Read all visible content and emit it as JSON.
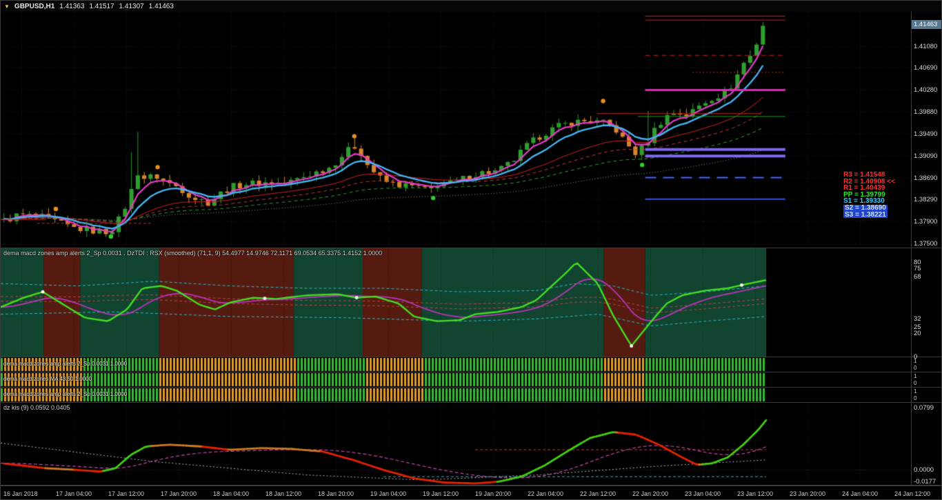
{
  "colors": {
    "bg": "#000000",
    "grid": "#1f1f1f",
    "bull": "#2f9e2f",
    "bear": "#d4862c",
    "zone_green": "#124530",
    "zone_red": "#551b10",
    "rsx_green": "#44dd22",
    "rsx_magenta": "#bb33bb",
    "band_cyan": "#2ab8c8",
    "band_red": "#b84444",
    "strip_green": "#33bb33",
    "strip_orange": "#e09a28",
    "kis_green": "#44cc11",
    "kis_red": "#e02200",
    "kis_orange": "#cc7a22",
    "kis_signal": "#cc44aa"
  },
  "titlebar": {
    "symbol": "GBPUSD,H1",
    "open": "1.41363",
    "high": "1.41517",
    "low": "1.41307",
    "close": "1.41463"
  },
  "pivots": [
    {
      "id": "r3",
      "text": "R3 = 1.41548",
      "color": "#ff3030",
      "bg": null
    },
    {
      "id": "r2",
      "text": "R2 = 1.40908 <<",
      "color": "#ff3030",
      "bg": null
    },
    {
      "id": "r1",
      "text": "R1 = 1.40439",
      "color": "#ff3030",
      "bg": null
    },
    {
      "id": "pp",
      "text": "PP = 1.39799",
      "color": "#22ee22",
      "bg": null
    },
    {
      "id": "s1",
      "text": "S1 = 1.39330",
      "color": "#35ccff",
      "bg": null
    },
    {
      "id": "s2",
      "text": "S2 = 1.38690",
      "color": "#cfe0ff",
      "bg": "#2244cc"
    },
    {
      "id": "s3",
      "text": "S3 = 1.38221",
      "color": "#cfe0ff",
      "bg": "#2244cc"
    }
  ],
  "chart_data": {
    "type": "candlestick-multi-panel",
    "symbol": "GBPUSD",
    "timeframe": "H1",
    "x_axis": [
      "16 Jan 2018",
      "17 Jan 04:00",
      "17 Jan 12:00",
      "17 Jan 20:00",
      "18 Jan 04:00",
      "18 Jan 12:00",
      "18 Jan 20:00",
      "19 Jan 04:00",
      "19 Jan 12:00",
      "19 Jan 20:00",
      "22 Jan 04:00",
      "22 Jan 12:00",
      "22 Jan 20:00",
      "23 Jan 04:00",
      "23 Jan 12:00",
      "23 Jan 20:00",
      "24 Jan 04:00",
      "24 Jan 12:00"
    ],
    "main": {
      "price_top": 1.417,
      "price_bottom": 1.3742,
      "bars": 120,
      "price_tag": "1.41463",
      "scale": [
        "1.41080",
        "1.40690",
        "1.40280",
        "1.39880",
        "1.39490",
        "1.39090",
        "1.38690",
        "1.38290",
        "1.37900",
        "1.37500"
      ],
      "close_anchors": [
        [
          0.0,
          1.379
        ],
        [
          0.02,
          1.3802
        ],
        [
          0.05,
          1.3797
        ],
        [
          0.07,
          1.3788
        ],
        [
          0.09,
          1.3778
        ],
        [
          0.12,
          1.3772
        ],
        [
          0.14,
          1.377
        ],
        [
          0.155,
          1.38
        ],
        [
          0.168,
          1.3845
        ],
        [
          0.175,
          1.388
        ],
        [
          0.185,
          1.3868
        ],
        [
          0.2,
          1.3872
        ],
        [
          0.215,
          1.386
        ],
        [
          0.23,
          1.3852
        ],
        [
          0.25,
          1.3832
        ],
        [
          0.27,
          1.3824
        ],
        [
          0.285,
          1.384
        ],
        [
          0.3,
          1.3852
        ],
        [
          0.32,
          1.3858
        ],
        [
          0.35,
          1.386
        ],
        [
          0.37,
          1.3858
        ],
        [
          0.39,
          1.3868
        ],
        [
          0.41,
          1.3878
        ],
        [
          0.43,
          1.3888
        ],
        [
          0.45,
          1.3915
        ],
        [
          0.465,
          1.3928
        ],
        [
          0.48,
          1.389
        ],
        [
          0.5,
          1.3862
        ],
        [
          0.52,
          1.3856
        ],
        [
          0.545,
          1.3852
        ],
        [
          0.56,
          1.3844
        ],
        [
          0.575,
          1.3862
        ],
        [
          0.59,
          1.3858
        ],
        [
          0.61,
          1.387
        ],
        [
          0.63,
          1.3878
        ],
        [
          0.65,
          1.388
        ],
        [
          0.67,
          1.3898
        ],
        [
          0.69,
          1.3928
        ],
        [
          0.71,
          1.3948
        ],
        [
          0.73,
          1.3962
        ],
        [
          0.75,
          1.397
        ],
        [
          0.77,
          1.3972
        ],
        [
          0.79,
          1.3968
        ],
        [
          0.805,
          1.3958
        ],
        [
          0.82,
          1.393
        ],
        [
          0.833,
          1.3912
        ],
        [
          0.845,
          1.3928
        ],
        [
          0.858,
          1.3958
        ],
        [
          0.872,
          1.398
        ],
        [
          0.885,
          1.3988
        ],
        [
          0.9,
          1.3982
        ],
        [
          0.915,
          1.3998
        ],
        [
          0.93,
          1.4012
        ],
        [
          0.945,
          1.402
        ],
        [
          0.955,
          1.4028
        ],
        [
          0.965,
          1.4052
        ],
        [
          0.975,
          1.4078
        ],
        [
          0.985,
          1.4092
        ],
        [
          0.993,
          1.4118
        ],
        [
          1.0,
          1.4146
        ]
      ],
      "spikes": [
        {
          "f": 0.167,
          "high": 1.3915
        },
        {
          "f": 0.175,
          "high": 1.3952
        },
        {
          "f": 0.462,
          "high": 1.394
        },
        {
          "f": 0.852,
          "high": 1.399
        },
        {
          "f": 1.0,
          "high": 1.41517
        }
      ],
      "emas": [
        {
          "p": 110,
          "color": "#9a9a9a",
          "w": 1,
          "dash": [
            1,
            3
          ]
        },
        {
          "p": 62,
          "color": "#2f9e2f",
          "w": 1,
          "dash": [
            5,
            4
          ]
        },
        {
          "p": 40,
          "color": "#c23b3b",
          "w": 1,
          "dash": [
            5,
            4
          ]
        },
        {
          "p": 26,
          "color": "#d42222",
          "w": 1,
          "dash": []
        },
        {
          "p": 4,
          "color": "#e83cc8",
          "w": 2.2,
          "dash": []
        },
        {
          "p": 9,
          "color": "#45b4f2",
          "w": 2.4,
          "dash": []
        }
      ],
      "levels": [
        {
          "price": 1.4162,
          "color": "#d02020",
          "w": 1,
          "dash": [],
          "x1": 0.708,
          "x2": 0.862
        },
        {
          "price": 1.41548,
          "color": "#d02020",
          "w": 1,
          "dash": [],
          "x1": 0.708,
          "x2": 0.862
        },
        {
          "price": 1.40908,
          "color": "#d02020",
          "w": 1,
          "dash": [
            7,
            5
          ],
          "x1": 0.708,
          "x2": 0.862
        },
        {
          "price": 1.406,
          "color": "#c03030",
          "w": 1,
          "dash": [
            2,
            3
          ],
          "x1": 0.76,
          "x2": 0.862
        },
        {
          "price": 1.4028,
          "color": "#e820c0",
          "w": 3,
          "dash": [],
          "x1": 0.708,
          "x2": 0.862
        },
        {
          "price": 1.3985,
          "color": "#d02020",
          "w": 1,
          "dash": [],
          "x1": 0.655,
          "x2": 0.835
        },
        {
          "price": 1.39799,
          "color": "#20a020",
          "w": 1,
          "dash": [],
          "x1": 0.7,
          "x2": 0.862
        },
        {
          "price": 1.392,
          "color": "#7b68ee",
          "w": 4,
          "dash": [],
          "x1": 0.708,
          "x2": 0.862
        },
        {
          "price": 1.3908,
          "color": "#7b68ee",
          "w": 4,
          "dash": [],
          "x1": 0.708,
          "x2": 0.862
        },
        {
          "price": 1.3869,
          "color": "#4466ff",
          "w": 2,
          "dash": [
            16,
            10
          ],
          "x1": 0.708,
          "x2": 0.862
        },
        {
          "price": 1.383,
          "color": "#3050e8",
          "w": 2,
          "dash": [],
          "x1": 0.708,
          "x2": 0.862
        },
        {
          "price": 1.3786,
          "color": "#c03030",
          "w": 1,
          "dash": [
            4,
            3
          ],
          "x1": 0.04,
          "x2": 0.165
        },
        {
          "price": 1.3793,
          "color": "#d02020",
          "w": 1,
          "dash": [],
          "x1": 0.0,
          "x2": 0.05
        }
      ],
      "dots": [
        {
          "f": 0.072,
          "price": 1.3812,
          "color": "#e89020"
        },
        {
          "f": 0.205,
          "price": 1.3888,
          "color": "#e89020"
        },
        {
          "f": 0.462,
          "price": 1.3944,
          "color": "#e89020"
        },
        {
          "f": 0.787,
          "price": 1.4008,
          "color": "#e89020"
        },
        {
          "f": 0.144,
          "price": 1.3762,
          "color": "#2ecc2e"
        },
        {
          "f": 0.565,
          "price": 1.3832,
          "color": "#2ecc2e"
        },
        {
          "f": 0.838,
          "price": 1.3892,
          "color": "#2ecc2e"
        }
      ]
    },
    "dztdi": {
      "title": "dema macd zones amp alerts 2_Sp 0.0031 . DzTDI : RSX (smoothed) (71,1, 9) 54.4977 14.9746 72.1171 69.0534 65.3375 1.4152 1.0000",
      "max": 92,
      "min": 0,
      "scale": [
        "80",
        "75",
        "68",
        "32",
        "25",
        "20",
        "0"
      ],
      "zones": [
        [
          0,
          0.056,
          "g"
        ],
        [
          0.056,
          0.104,
          "r"
        ],
        [
          0.104,
          0.207,
          "g"
        ],
        [
          0.207,
          0.383,
          "r"
        ],
        [
          0.383,
          0.473,
          "g"
        ],
        [
          0.473,
          0.55,
          "r"
        ],
        [
          0.55,
          0.788,
          "g"
        ],
        [
          0.788,
          0.842,
          "r"
        ],
        [
          0.842,
          1.0,
          "g"
        ]
      ],
      "rsx_anchors": [
        [
          0,
          42
        ],
        [
          0.03,
          50
        ],
        [
          0.055,
          55
        ],
        [
          0.08,
          45
        ],
        [
          0.11,
          33
        ],
        [
          0.14,
          30
        ],
        [
          0.165,
          40
        ],
        [
          0.185,
          58
        ],
        [
          0.21,
          60
        ],
        [
          0.23,
          56
        ],
        [
          0.26,
          44
        ],
        [
          0.28,
          40
        ],
        [
          0.3,
          46
        ],
        [
          0.33,
          50
        ],
        [
          0.36,
          49
        ],
        [
          0.4,
          52
        ],
        [
          0.44,
          53
        ],
        [
          0.465,
          50
        ],
        [
          0.49,
          51
        ],
        [
          0.52,
          45
        ],
        [
          0.54,
          34
        ],
        [
          0.57,
          30
        ],
        [
          0.6,
          31
        ],
        [
          0.62,
          36
        ],
        [
          0.65,
          38
        ],
        [
          0.68,
          42
        ],
        [
          0.7,
          48
        ],
        [
          0.72,
          60
        ],
        [
          0.74,
          72
        ],
        [
          0.752,
          80
        ],
        [
          0.78,
          62
        ],
        [
          0.8,
          35
        ],
        [
          0.824,
          9
        ],
        [
          0.85,
          30
        ],
        [
          0.87,
          45
        ],
        [
          0.89,
          52
        ],
        [
          0.92,
          56
        ],
        [
          0.95,
          58
        ],
        [
          0.97,
          61
        ],
        [
          1.0,
          65
        ]
      ],
      "upper_band": [
        [
          0,
          62
        ],
        [
          0.1,
          60
        ],
        [
          0.2,
          64
        ],
        [
          0.3,
          60
        ],
        [
          0.4,
          58
        ],
        [
          0.5,
          58
        ],
        [
          0.6,
          55
        ],
        [
          0.7,
          56
        ],
        [
          0.75,
          62
        ],
        [
          0.8,
          60
        ],
        [
          0.85,
          52
        ],
        [
          0.92,
          55
        ],
        [
          1,
          60
        ]
      ],
      "lower_band": [
        [
          0,
          36
        ],
        [
          0.15,
          38
        ],
        [
          0.3,
          34
        ],
        [
          0.45,
          33
        ],
        [
          0.6,
          30
        ],
        [
          0.7,
          32
        ],
        [
          0.78,
          36
        ],
        [
          0.85,
          26
        ],
        [
          0.92,
          30
        ],
        [
          1,
          34
        ]
      ],
      "dots": [
        0.055,
        0.345,
        0.465,
        0.824,
        0.968
      ],
      "signal_period": 9
    },
    "strips": [
      {
        "label": "dema macd zones amp alerts 2_Sp 0.0031 1.0000",
        "scale": [
          "1",
          "0"
        ]
      },
      {
        "label": "dema macd zones MA 43.50 1.0000",
        "scale": [
          "1",
          "0"
        ]
      },
      {
        "label": "dema macd zones amp alerts 2_Sp 0.0031 1.0000",
        "scale": [
          "1",
          "0"
        ]
      }
    ],
    "strip_zones": [
      [
        0.004,
        0.104
      ],
      [
        0.207,
        0.383
      ],
      [
        0.473,
        0.55
      ],
      [
        0.788,
        0.842
      ]
    ],
    "dzkis": {
      "title": "dz kis (9) 0.0592 0.0405",
      "max": 0.0799,
      "min": -0.0177,
      "scale": [
        "0.0799",
        "0.0000",
        "-0.0177"
      ],
      "anchors": [
        [
          0,
          0.008
        ],
        [
          0.03,
          0.005
        ],
        [
          0.06,
          0.002
        ],
        [
          0.1,
          0.0
        ],
        [
          0.13,
          -0.002
        ],
        [
          0.15,
          0.002
        ],
        [
          0.17,
          0.018
        ],
        [
          0.19,
          0.028
        ],
        [
          0.22,
          0.03
        ],
        [
          0.26,
          0.028
        ],
        [
          0.3,
          0.024
        ],
        [
          0.34,
          0.026
        ],
        [
          0.38,
          0.025
        ],
        [
          0.42,
          0.022
        ],
        [
          0.46,
          0.012
        ],
        [
          0.5,
          0.0
        ],
        [
          0.54,
          -0.01
        ],
        [
          0.58,
          -0.015
        ],
        [
          0.62,
          -0.016
        ],
        [
          0.65,
          -0.014
        ],
        [
          0.68,
          -0.008
        ],
        [
          0.71,
          0.005
        ],
        [
          0.74,
          0.022
        ],
        [
          0.77,
          0.038
        ],
        [
          0.8,
          0.045
        ],
        [
          0.83,
          0.042
        ],
        [
          0.86,
          0.03
        ],
        [
          0.89,
          0.015
        ],
        [
          0.91,
          0.006
        ],
        [
          0.93,
          0.008
        ],
        [
          0.95,
          0.015
        ],
        [
          0.97,
          0.03
        ],
        [
          0.99,
          0.048
        ],
        [
          1.0,
          0.0592
        ]
      ],
      "signal_period": 40,
      "white_band": [
        [
          0,
          0.032
        ],
        [
          0.2,
          0.01
        ],
        [
          0.4,
          -0.006
        ],
        [
          0.55,
          -0.012
        ],
        [
          0.7,
          -0.006
        ],
        [
          0.85,
          0.004
        ],
        [
          1,
          0.012
        ]
      ],
      "red_level": {
        "value": 0.024,
        "x1": 0.62,
        "x2": 1.0
      },
      "cyan_level": {
        "value": -0.008,
        "x1": 0.5,
        "x2": 1.0
      }
    }
  }
}
